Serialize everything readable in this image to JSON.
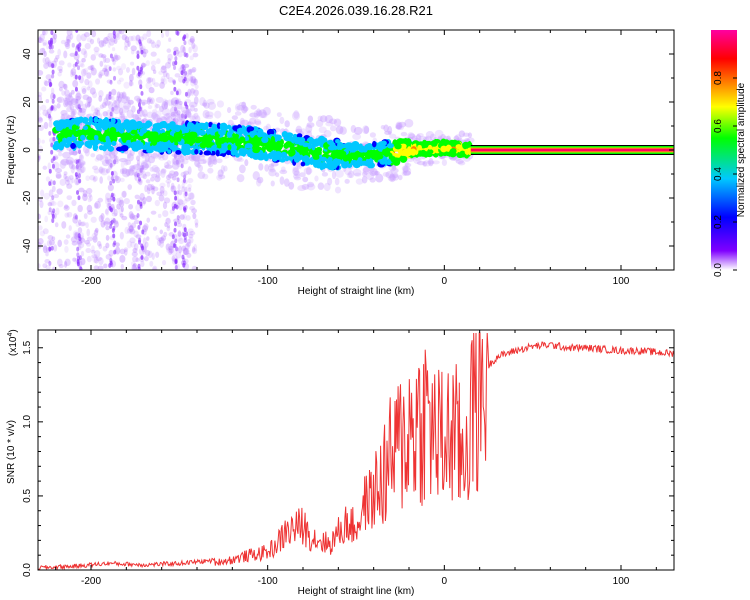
{
  "chart_data": [
    {
      "type": "heatmap",
      "title": "C2E4.2026.039.16.28.R21",
      "xlabel": "Height of straight line (km)",
      "ylabel": "Frequency (Hz)",
      "xlim": [
        -230,
        130
      ],
      "ylim": [
        -50,
        50
      ],
      "xticks": [
        -200,
        -100,
        0,
        100
      ],
      "yticks": [
        -40,
        -20,
        0,
        20,
        40
      ],
      "band_center_freq": [
        {
          "x": -215,
          "y": 7
        },
        {
          "x": -200,
          "y": 7
        },
        {
          "x": -180,
          "y": 6
        },
        {
          "x": -160,
          "y": 5
        },
        {
          "x": -140,
          "y": 5
        },
        {
          "x": -120,
          "y": 4
        },
        {
          "x": -100,
          "y": 2
        },
        {
          "x": -80,
          "y": 0
        },
        {
          "x": -60,
          "y": -2
        },
        {
          "x": -40,
          "y": -2
        },
        {
          "x": -20,
          "y": 0
        },
        {
          "x": 0,
          "y": 1
        },
        {
          "x": 15,
          "y": 0
        },
        {
          "x": 130,
          "y": 0
        }
      ],
      "steady_line": {
        "x_from": 15,
        "x_to": 130,
        "frequency": 0
      },
      "colorbar": {
        "label": "Normalized spectral amplitude",
        "range": [
          0.0,
          1.0
        ],
        "ticks": [
          0.0,
          0.2,
          0.4,
          0.6,
          0.8
        ],
        "tick_labels": [
          "0.0",
          "0.2",
          "0.4",
          "0.6",
          "0.8"
        ],
        "colors": [
          "#ffffff",
          "#8000ff",
          "#0000ff",
          "#00c8ff",
          "#00ff00",
          "#ffff00",
          "#ff8000",
          "#ff0000",
          "#ff00a0"
        ]
      }
    },
    {
      "type": "line",
      "xlabel": "Height of straight line (km)",
      "ylabel": "SNR (10 * v/v)",
      "y_multiplier": "(x10",
      "y_multiplier_exp": "4",
      "y_multiplier_close": ")",
      "xlim": [
        -230,
        130
      ],
      "ylim": [
        0,
        1.62
      ],
      "xticks": [
        -200,
        -100,
        0,
        100
      ],
      "yticks": [
        0.0,
        0.5,
        1.0,
        1.5
      ],
      "ytick_labels": [
        "0.0",
        "0.5",
        "1.0",
        "1.5"
      ],
      "line_color": "#ee3333",
      "series": [
        {
          "name": "SNR",
          "x": [
            -230,
            -210,
            -190,
            -170,
            -150,
            -130,
            -120,
            -110,
            -100,
            -95,
            -90,
            -85,
            -80,
            -75,
            -70,
            -65,
            -60,
            -55,
            -50,
            -45,
            -40,
            -35,
            -30,
            -25,
            -20,
            -15,
            -10,
            -5,
            0,
            5,
            10,
            15,
            20,
            25,
            30,
            40,
            50,
            60,
            70,
            80,
            90,
            100,
            110,
            120,
            130
          ],
          "y": [
            0.0,
            0.01,
            0.03,
            0.02,
            0.03,
            0.05,
            0.07,
            0.1,
            0.12,
            0.17,
            0.25,
            0.28,
            0.3,
            0.22,
            0.2,
            0.17,
            0.25,
            0.32,
            0.28,
            0.45,
            0.5,
            0.62,
            0.75,
            0.85,
            0.95,
            1.0,
            1.05,
            0.9,
            0.85,
            0.95,
            0.75,
            1.05,
            1.25,
            1.38,
            1.44,
            1.48,
            1.51,
            1.52,
            1.5,
            1.5,
            1.49,
            1.48,
            1.48,
            1.47,
            1.46
          ]
        }
      ]
    }
  ]
}
